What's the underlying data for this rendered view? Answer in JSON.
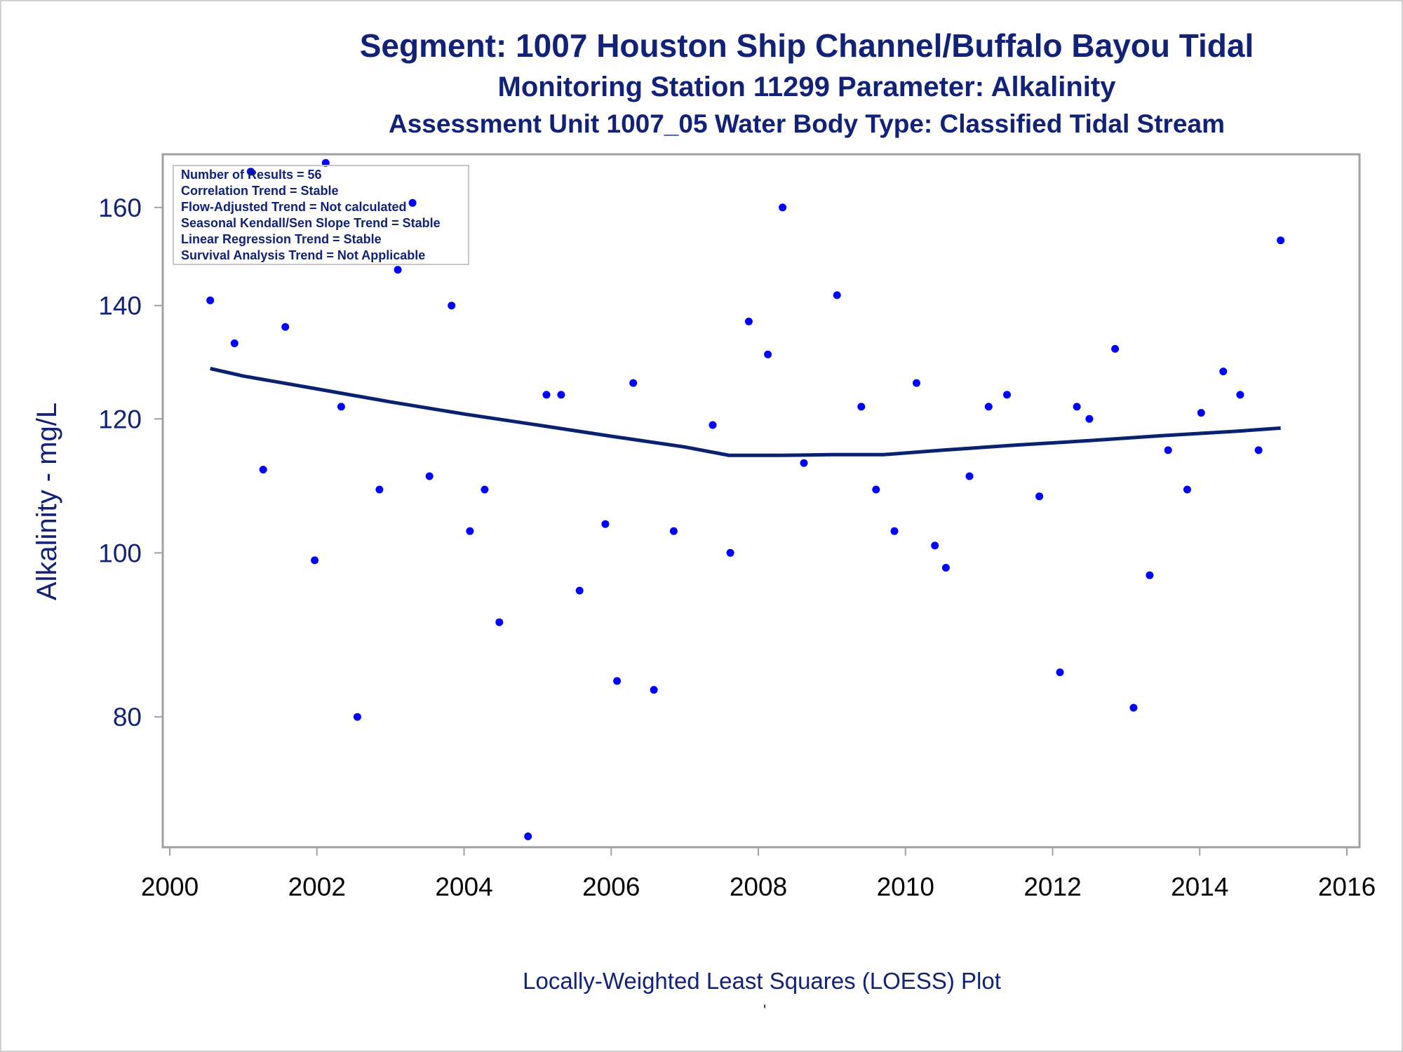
{
  "chart_data": {
    "type": "scatter",
    "title": "Segment: 1007  Houston Ship Channel/Buffalo Bayou Tidal",
    "subtitle": "Monitoring Station 11299 Parameter: Alkalinity",
    "subtitle2": "Assessment Unit 1007_05   Water Body Type: Classified Tidal Stream",
    "ylabel": "Alkalinity - mg/L",
    "xlabel": "",
    "footnote": "Locally-Weighted Least Squares (LOESS) Plot",
    "footnote_mark": "'",
    "yscale": "log",
    "xlim": [
      2000,
      2016
    ],
    "ylim": [
      67,
      172
    ],
    "xticks": [
      2000,
      2002,
      2004,
      2006,
      2008,
      2010,
      2012,
      2014,
      2016
    ],
    "yticks": [
      80,
      100,
      120,
      140,
      160
    ],
    "stats": [
      "Number of Results = 56",
      "Correlation Trend = Stable",
      "Flow-Adjusted Trend = Not calculated",
      "Seasonal Kendall/Sen Slope Trend = Stable",
      "Linear Regression Trend = Stable",
      "Survival Analysis Trend = Not Applicable"
    ],
    "points": [
      [
        2000.55,
        141
      ],
      [
        2000.88,
        133
      ],
      [
        2001.1,
        168
      ],
      [
        2001.27,
        112
      ],
      [
        2001.57,
        136
      ],
      [
        2001.97,
        99
      ],
      [
        2002.12,
        170
      ],
      [
        2002.33,
        122
      ],
      [
        2002.55,
        80
      ],
      [
        2002.85,
        109
      ],
      [
        2003.1,
        147
      ],
      [
        2003.3,
        161
      ],
      [
        2003.53,
        111
      ],
      [
        2003.83,
        140
      ],
      [
        2004.08,
        103
      ],
      [
        2004.28,
        109
      ],
      [
        2004.48,
        91
      ],
      [
        2004.87,
        68
      ],
      [
        2005.12,
        124
      ],
      [
        2005.32,
        124
      ],
      [
        2005.57,
        95
      ],
      [
        2005.92,
        104
      ],
      [
        2006.08,
        84
      ],
      [
        2006.3,
        126
      ],
      [
        2006.58,
        83
      ],
      [
        2006.85,
        103
      ],
      [
        2007.38,
        119
      ],
      [
        2007.62,
        100
      ],
      [
        2007.87,
        137
      ],
      [
        2008.13,
        131
      ],
      [
        2008.33,
        160
      ],
      [
        2008.62,
        113
      ],
      [
        2009.07,
        142
      ],
      [
        2009.4,
        122
      ],
      [
        2009.6,
        109
      ],
      [
        2009.85,
        103
      ],
      [
        2010.15,
        126
      ],
      [
        2010.4,
        101
      ],
      [
        2010.55,
        98
      ],
      [
        2010.87,
        111
      ],
      [
        2011.13,
        122
      ],
      [
        2011.38,
        124
      ],
      [
        2011.82,
        108
      ],
      [
        2012.1,
        85
      ],
      [
        2012.33,
        122
      ],
      [
        2012.5,
        120
      ],
      [
        2012.85,
        132
      ],
      [
        2013.1,
        81
      ],
      [
        2013.32,
        97
      ],
      [
        2013.57,
        115
      ],
      [
        2013.83,
        109
      ],
      [
        2014.02,
        121
      ],
      [
        2014.32,
        128
      ],
      [
        2014.55,
        124
      ],
      [
        2014.8,
        115
      ],
      [
        2015.1,
        153
      ]
    ],
    "loess": [
      [
        2000.55,
        128.5
      ],
      [
        2001.0,
        127.2
      ],
      [
        2002.0,
        125.0
      ],
      [
        2003.0,
        122.8
      ],
      [
        2004.0,
        120.8
      ],
      [
        2005.0,
        119.0
      ],
      [
        2006.0,
        117.2
      ],
      [
        2007.0,
        115.5
      ],
      [
        2007.6,
        114.2
      ],
      [
        2008.3,
        114.2
      ],
      [
        2009.0,
        114.3
      ],
      [
        2009.7,
        114.3
      ],
      [
        2010.5,
        115.0
      ],
      [
        2011.5,
        115.8
      ],
      [
        2012.5,
        116.5
      ],
      [
        2013.5,
        117.3
      ],
      [
        2014.5,
        118.0
      ],
      [
        2015.1,
        118.5
      ]
    ],
    "colors": {
      "points": "#0000ff",
      "line": "#0a2170",
      "text": "#112277",
      "frame": "#a0a0a0"
    }
  }
}
